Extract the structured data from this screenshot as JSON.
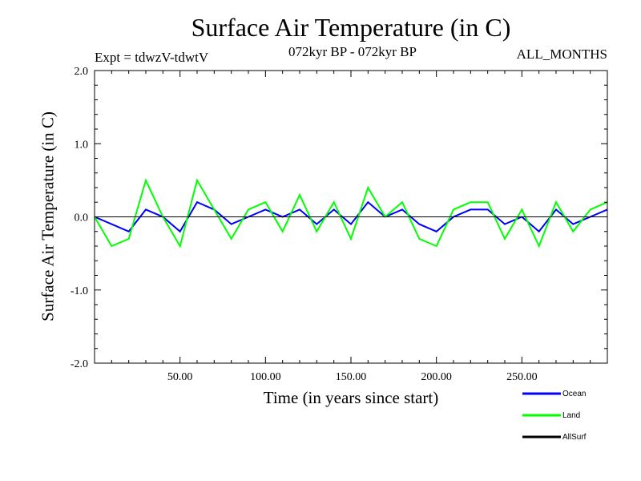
{
  "chart_data": {
    "type": "line",
    "title": "Surface Air Temperature (in C)",
    "subtitle_left": "Expt = tdwzV-tdwtV",
    "subtitle_center": "072kyr BP - 072kyr BP",
    "subtitle_right": "ALL_MONTHS",
    "xlabel": "Time (in years since start)",
    "ylabel": "Surface Air Temperature (in C)",
    "xlim": [
      0,
      300
    ],
    "ylim": [
      -2.0,
      2.0
    ],
    "xticks": [
      50,
      100,
      150,
      200,
      250
    ],
    "xtick_labels": [
      "50.00",
      "100.00",
      "150.00",
      "200.00",
      "250.00"
    ],
    "yticks": [
      -2.0,
      -1.0,
      0.0,
      1.0,
      2.0
    ],
    "ytick_labels": [
      "-2.0",
      "-1.0",
      "0.0",
      "1.0",
      "2.0"
    ],
    "zero_line": true,
    "legend_position": "bottom-right",
    "series": [
      {
        "name": "Ocean",
        "color": "#0000ff",
        "x": [
          0,
          10,
          20,
          30,
          40,
          50,
          60,
          70,
          80,
          90,
          100,
          110,
          120,
          130,
          140,
          150,
          160,
          170,
          180,
          190,
          200,
          210,
          220,
          230,
          240,
          250,
          260,
          270,
          280,
          290,
          300
        ],
        "y": [
          0.0,
          -0.1,
          -0.2,
          0.1,
          0.0,
          -0.2,
          0.2,
          0.1,
          -0.1,
          0.0,
          0.1,
          0.0,
          0.1,
          -0.1,
          0.1,
          -0.1,
          0.2,
          0.0,
          0.1,
          -0.1,
          -0.2,
          0.0,
          0.1,
          0.1,
          -0.1,
          0.0,
          -0.2,
          0.1,
          -0.1,
          0.0,
          0.1
        ]
      },
      {
        "name": "Land",
        "color": "#00ff00",
        "x": [
          0,
          10,
          20,
          30,
          40,
          50,
          60,
          70,
          80,
          90,
          100,
          110,
          120,
          130,
          140,
          150,
          160,
          170,
          180,
          190,
          200,
          210,
          220,
          230,
          240,
          250,
          260,
          270,
          280,
          290,
          300
        ],
        "y": [
          0.0,
          -0.4,
          -0.3,
          0.5,
          0.0,
          -0.4,
          0.5,
          0.1,
          -0.3,
          0.1,
          0.2,
          -0.2,
          0.3,
          -0.2,
          0.2,
          -0.3,
          0.4,
          0.0,
          0.2,
          -0.3,
          -0.4,
          0.1,
          0.2,
          0.2,
          -0.3,
          0.1,
          -0.4,
          0.2,
          -0.2,
          0.1,
          0.2
        ]
      },
      {
        "name": "AllSurf",
        "color": "#000000",
        "x": [],
        "y": []
      }
    ]
  }
}
